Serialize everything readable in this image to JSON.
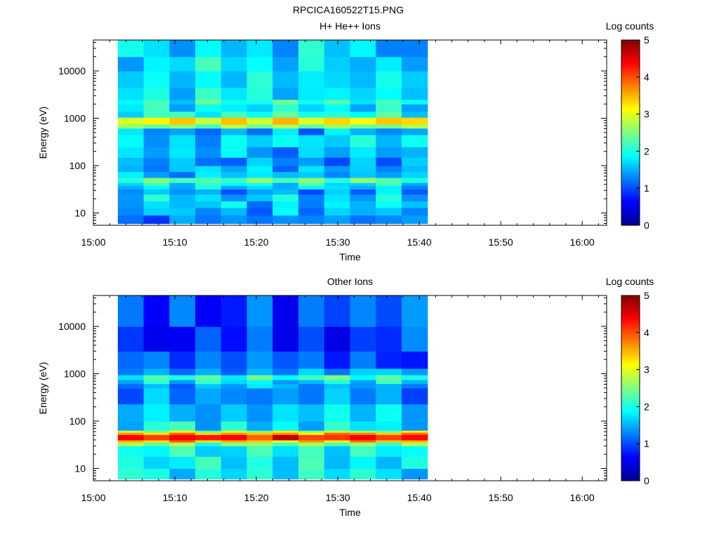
{
  "figure_title": "RPCICA160522T15.PNG",
  "chart_data": [
    {
      "type": "heatmap",
      "title": "H+ He++ Ions",
      "xlabel": "Time",
      "ylabel": "Energy (eV)",
      "x_ticks": [
        "15:00",
        "15:10",
        "15:20",
        "15:30",
        "15:40",
        "15:50",
        "16:00"
      ],
      "y_ticks": [
        "10",
        "100",
        "1000",
        "10000"
      ],
      "y_scale": "log",
      "xlim": [
        "15:00",
        "16:03"
      ],
      "ylim": [
        5.5,
        45000
      ],
      "data_time_range": [
        "15:03",
        "15:41"
      ],
      "colorbar": {
        "label": "Log counts",
        "ticks": [
          "0",
          "1",
          "2",
          "3",
          "4",
          "5"
        ],
        "range": [
          0,
          5
        ]
      },
      "energy_bands": [
        {
          "emin": 6,
          "emax": 9,
          "log_counts": 1.4
        },
        {
          "emin": 9,
          "emax": 13,
          "log_counts": 1.6
        },
        {
          "emin": 13,
          "emax": 18,
          "log_counts": 1.7
        },
        {
          "emin": 18,
          "emax": 25,
          "log_counts": 1.8
        },
        {
          "emin": 25,
          "emax": 32,
          "log_counts": 1.5
        },
        {
          "emin": 32,
          "emax": 38,
          "log_counts": 1.7
        },
        {
          "emin": 38,
          "emax": 44,
          "log_counts": 2.0
        },
        {
          "emin": 44,
          "emax": 56,
          "log_counts": 2.4
        },
        {
          "emin": 56,
          "emax": 75,
          "log_counts": 1.7
        },
        {
          "emin": 75,
          "emax": 100,
          "log_counts": 1.6
        },
        {
          "emin": 100,
          "emax": 150,
          "log_counts": 1.4
        },
        {
          "emin": 150,
          "emax": 250,
          "log_counts": 1.6
        },
        {
          "emin": 250,
          "emax": 450,
          "log_counts": 1.8
        },
        {
          "emin": 450,
          "emax": 620,
          "log_counts": 1.5
        },
        {
          "emin": 620,
          "emax": 750,
          "log_counts": 2.6
        },
        {
          "emin": 750,
          "emax": 1050,
          "log_counts": 3.3
        },
        {
          "emin": 1050,
          "emax": 1400,
          "log_counts": 2.1
        },
        {
          "emin": 1400,
          "emax": 2000,
          "log_counts": 1.9
        },
        {
          "emin": 2000,
          "emax": 2500,
          "log_counts": 2.1
        },
        {
          "emin": 2500,
          "emax": 4500,
          "log_counts": 1.9
        },
        {
          "emin": 4500,
          "emax": 10000,
          "log_counts": 1.8
        },
        {
          "emin": 10000,
          "emax": 20000,
          "log_counts": 1.9
        },
        {
          "emin": 20000,
          "emax": 45000,
          "log_counts": 1.8
        }
      ]
    },
    {
      "type": "heatmap",
      "title": "Other Ions",
      "xlabel": "Time",
      "ylabel": "Energy (eV)",
      "x_ticks": [
        "15:00",
        "15:10",
        "15:20",
        "15:30",
        "15:40",
        "15:50",
        "16:00"
      ],
      "y_ticks": [
        "10",
        "100",
        "1000",
        "10000"
      ],
      "y_scale": "log",
      "xlim": [
        "15:00",
        "16:03"
      ],
      "ylim": [
        5.5,
        45000
      ],
      "data_time_range": [
        "15:03",
        "15:41"
      ],
      "colorbar": {
        "label": "Log counts",
        "ticks": [
          "0",
          "1",
          "2",
          "3",
          "4",
          "5"
        ],
        "range": [
          0,
          5
        ]
      },
      "energy_bands": [
        {
          "emin": 6,
          "emax": 10,
          "log_counts": 1.9
        },
        {
          "emin": 10,
          "emax": 18,
          "log_counts": 1.95
        },
        {
          "emin": 18,
          "emax": 30,
          "log_counts": 2.0
        },
        {
          "emin": 30,
          "emax": 36,
          "log_counts": 2.5
        },
        {
          "emin": 36,
          "emax": 40,
          "log_counts": 3.6
        },
        {
          "emin": 40,
          "emax": 52,
          "log_counts": 4.4
        },
        {
          "emin": 52,
          "emax": 58,
          "log_counts": 3.7
        },
        {
          "emin": 58,
          "emax": 64,
          "log_counts": 2.9
        },
        {
          "emin": 64,
          "emax": 100,
          "log_counts": 1.9
        },
        {
          "emin": 100,
          "emax": 230,
          "log_counts": 1.7
        },
        {
          "emin": 230,
          "emax": 500,
          "log_counts": 1.4
        },
        {
          "emin": 500,
          "emax": 620,
          "log_counts": 1.5
        },
        {
          "emin": 620,
          "emax": 750,
          "log_counts": 1.9
        },
        {
          "emin": 750,
          "emax": 950,
          "log_counts": 2.2
        },
        {
          "emin": 950,
          "emax": 1300,
          "log_counts": 1.5
        },
        {
          "emin": 1300,
          "emax": 3000,
          "log_counts": 1.2
        },
        {
          "emin": 3000,
          "emax": 10000,
          "log_counts": 1.0
        },
        {
          "emin": 10000,
          "emax": 45000,
          "log_counts": 1.1
        }
      ]
    }
  ]
}
